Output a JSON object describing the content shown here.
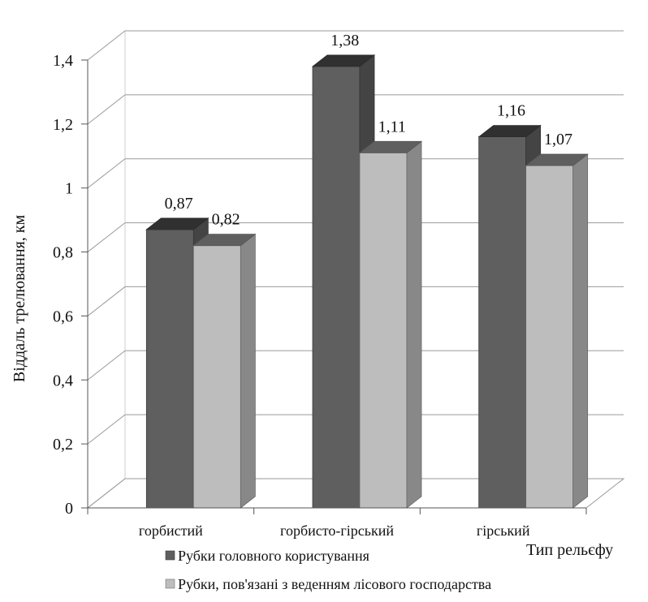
{
  "chart_data": {
    "type": "bar",
    "categories": [
      "горбистий",
      "горбисто-гірський",
      "гірський"
    ],
    "series": [
      {
        "name": "Рубки головного користування",
        "values": [
          0.87,
          1.38,
          1.16
        ],
        "labels": [
          "0,87",
          "1,38",
          "1,16"
        ],
        "color": "#5f5f5f"
      },
      {
        "name": "Рубки, пов'язані з веденням лісового господарства",
        "values": [
          0.82,
          1.11,
          1.07
        ],
        "labels": [
          "0,82",
          "1,11",
          "1,07"
        ],
        "color": "#bdbdbd"
      }
    ],
    "xlabel": "Тип рельєфу",
    "ylabel": "Віддаль трелювання, км",
    "ylim": [
      0,
      1.4
    ],
    "yticks": [
      0,
      0.2,
      0.4,
      0.6,
      0.8,
      1,
      1.2,
      1.4
    ],
    "ytick_labels": [
      "0",
      "0,2",
      "0,4",
      "0,6",
      "0,8",
      "1",
      "1,2",
      "1,4"
    ],
    "grid": true,
    "legend_position": "bottom",
    "style": "3d-clustered-column"
  }
}
